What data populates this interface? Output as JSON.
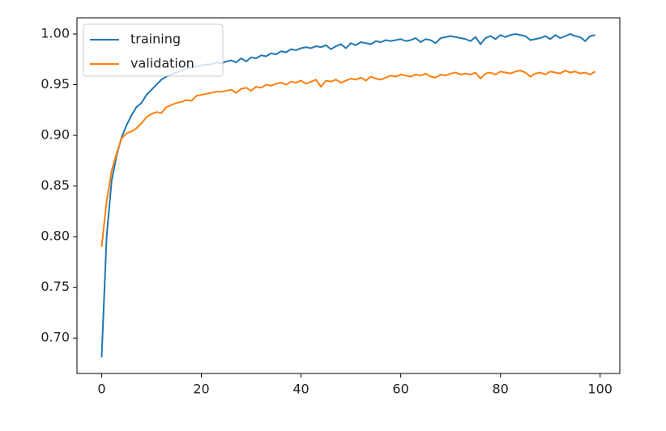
{
  "chart_data": {
    "type": "line",
    "legend": "upper left",
    "grid": false,
    "x": [
      0,
      1,
      2,
      3,
      4,
      5,
      6,
      7,
      8,
      9,
      10,
      11,
      12,
      13,
      14,
      15,
      16,
      17,
      18,
      19,
      20,
      21,
      22,
      23,
      24,
      25,
      26,
      27,
      28,
      29,
      30,
      31,
      32,
      33,
      34,
      35,
      36,
      37,
      38,
      39,
      40,
      41,
      42,
      43,
      44,
      45,
      46,
      47,
      48,
      49,
      50,
      51,
      52,
      53,
      54,
      55,
      56,
      57,
      58,
      59,
      60,
      61,
      62,
      63,
      64,
      65,
      66,
      67,
      68,
      69,
      70,
      71,
      72,
      73,
      74,
      75,
      76,
      77,
      78,
      79,
      80,
      81,
      82,
      83,
      84,
      85,
      86,
      87,
      88,
      89,
      90,
      91,
      92,
      93,
      94,
      95,
      96,
      97,
      98,
      99
    ],
    "series": [
      {
        "name": "training",
        "color": "#1f77b4",
        "values": [
          0.681,
          0.8,
          0.855,
          0.88,
          0.898,
          0.91,
          0.92,
          0.928,
          0.932,
          0.94,
          0.945,
          0.95,
          0.955,
          0.958,
          0.96,
          0.962,
          0.964,
          0.966,
          0.967,
          0.968,
          0.969,
          0.97,
          0.97,
          0.972,
          0.971,
          0.973,
          0.974,
          0.972,
          0.976,
          0.973,
          0.977,
          0.976,
          0.979,
          0.978,
          0.981,
          0.98,
          0.983,
          0.982,
          0.985,
          0.984,
          0.986,
          0.987,
          0.986,
          0.988,
          0.987,
          0.989,
          0.985,
          0.988,
          0.99,
          0.986,
          0.991,
          0.989,
          0.992,
          0.991,
          0.99,
          0.993,
          0.992,
          0.994,
          0.993,
          0.994,
          0.995,
          0.993,
          0.994,
          0.996,
          0.992,
          0.995,
          0.994,
          0.991,
          0.996,
          0.997,
          0.998,
          0.997,
          0.996,
          0.995,
          0.993,
          0.997,
          0.99,
          0.996,
          0.998,
          0.995,
          0.999,
          0.997,
          0.999,
          1.0,
          0.999,
          0.998,
          0.994,
          0.995,
          0.996,
          0.998,
          0.995,
          0.999,
          0.996,
          0.998,
          1.0,
          0.998,
          0.997,
          0.993,
          0.998,
          0.999
        ]
      },
      {
        "name": "validation",
        "color": "#ff7f0e",
        "values": [
          0.79,
          0.835,
          0.865,
          0.882,
          0.897,
          0.902,
          0.904,
          0.907,
          0.912,
          0.918,
          0.921,
          0.923,
          0.922,
          0.928,
          0.93,
          0.932,
          0.933,
          0.935,
          0.934,
          0.939,
          0.94,
          0.941,
          0.942,
          0.943,
          0.943,
          0.944,
          0.945,
          0.942,
          0.946,
          0.947,
          0.944,
          0.948,
          0.947,
          0.95,
          0.949,
          0.951,
          0.952,
          0.95,
          0.953,
          0.952,
          0.954,
          0.951,
          0.953,
          0.955,
          0.948,
          0.954,
          0.953,
          0.955,
          0.952,
          0.954,
          0.956,
          0.955,
          0.957,
          0.954,
          0.958,
          0.956,
          0.955,
          0.957,
          0.959,
          0.958,
          0.96,
          0.959,
          0.958,
          0.96,
          0.959,
          0.961,
          0.958,
          0.957,
          0.96,
          0.959,
          0.961,
          0.962,
          0.96,
          0.961,
          0.96,
          0.962,
          0.956,
          0.961,
          0.962,
          0.96,
          0.963,
          0.962,
          0.961,
          0.963,
          0.964,
          0.962,
          0.958,
          0.961,
          0.962,
          0.96,
          0.963,
          0.962,
          0.961,
          0.964,
          0.962,
          0.963,
          0.961,
          0.962,
          0.96,
          0.963
        ]
      }
    ],
    "xlim": [
      -4.95,
      103.95
    ],
    "xticks": [
      0,
      20,
      40,
      60,
      80,
      100
    ],
    "ylim": [
      0.665,
      1.016
    ],
    "yticks": [
      {
        "value": 0.7,
        "label": "0.70"
      },
      {
        "value": 0.75,
        "label": "0.75"
      },
      {
        "value": 0.8,
        "label": "0.80"
      },
      {
        "value": 0.85,
        "label": "0.85"
      },
      {
        "value": 0.9,
        "label": "0.90"
      },
      {
        "value": 0.95,
        "label": "0.95"
      },
      {
        "value": 1.0,
        "label": "1.00"
      }
    ]
  }
}
